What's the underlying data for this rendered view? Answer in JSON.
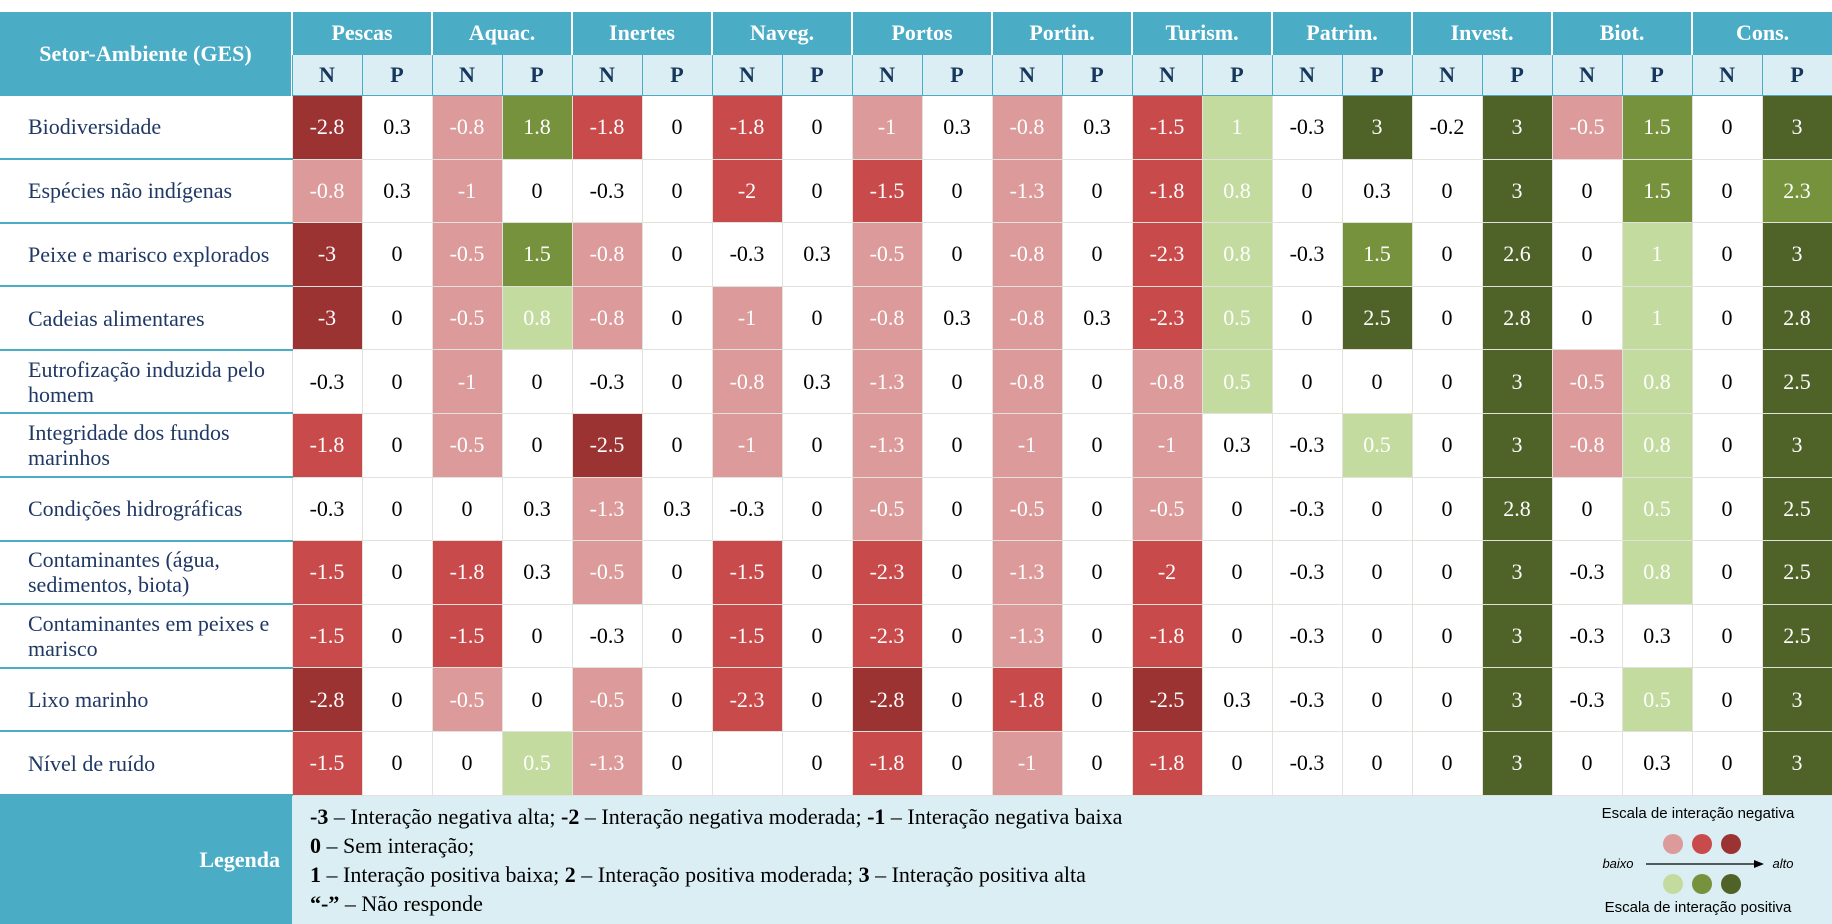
{
  "header": {
    "corner": "Setor-Ambiente (GES)",
    "sectors": [
      "Pescas",
      "Aquac.",
      "Inertes",
      "Naveg.",
      "Portos",
      "Portin.",
      "Turism.",
      "Patrim.",
      "Invest.",
      "Biot.",
      "Cons."
    ],
    "sub": [
      "N",
      "P"
    ]
  },
  "colors": {
    "negative": [
      "#dc9a9a",
      "#c84a4b",
      "#9b3333"
    ],
    "positive": [
      "#c4dba0",
      "#76923c",
      "#4f6228"
    ]
  },
  "rows": [
    {
      "label": "Biodiversidade",
      "cells": [
        -2.8,
        0.3,
        -0.8,
        1.8,
        -1.8,
        0,
        -1.8,
        0,
        -1,
        0.3,
        -0.8,
        0.3,
        -1.5,
        1,
        -0.3,
        3,
        -0.2,
        3,
        -0.5,
        1.5,
        0,
        3
      ]
    },
    {
      "label": "Espécies não indígenas",
      "cells": [
        -0.8,
        0.3,
        -1,
        0,
        -0.3,
        0,
        -2,
        0,
        -1.5,
        0,
        -1.3,
        0,
        -1.8,
        0.8,
        0,
        0.3,
        0,
        3,
        0,
        1.5,
        0,
        2.3
      ]
    },
    {
      "label": "Peixe e marisco explorados",
      "cells": [
        -3,
        0,
        -0.5,
        1.5,
        -0.8,
        0,
        -0.3,
        0.3,
        -0.5,
        0,
        -0.8,
        0,
        -2.3,
        0.8,
        -0.3,
        1.5,
        0,
        2.6,
        0,
        1,
        0,
        3
      ]
    },
    {
      "label": "Cadeias alimentares",
      "cells": [
        -3,
        0,
        -0.5,
        0.8,
        -0.8,
        0,
        -1,
        0,
        -0.8,
        0.3,
        -0.8,
        0.3,
        -2.3,
        0.5,
        0,
        2.5,
        0,
        2.8,
        0,
        1,
        0,
        2.8
      ]
    },
    {
      "label": "Eutrofização induzida pelo homem",
      "cells": [
        -0.3,
        0,
        -1,
        0,
        -0.3,
        0,
        -0.8,
        0.3,
        -1.3,
        0,
        -0.8,
        0,
        -0.8,
        0.5,
        0,
        0,
        0,
        3,
        -0.5,
        0.8,
        0,
        2.5
      ]
    },
    {
      "label": "Integridade dos fundos marinhos",
      "cells": [
        -1.8,
        0,
        -0.5,
        0,
        -2.5,
        0,
        -1,
        0,
        -1.3,
        0,
        -1,
        0,
        -1,
        0.3,
        -0.3,
        0.5,
        0,
        3,
        -0.8,
        0.8,
        0,
        3
      ]
    },
    {
      "label": "Condições hidrográficas",
      "cells": [
        -0.3,
        0,
        0,
        0.3,
        -1.3,
        0.3,
        -0.3,
        0,
        -0.5,
        0,
        -0.5,
        0,
        -0.5,
        0,
        -0.3,
        0,
        0,
        2.8,
        0,
        0.5,
        0,
        2.5
      ]
    },
    {
      "label": "Contaminantes (água, sedimentos, biota)",
      "cells": [
        -1.5,
        0,
        -1.8,
        0.3,
        -0.5,
        0,
        -1.5,
        0,
        -2.3,
        0,
        -1.3,
        0,
        -2,
        0,
        -0.3,
        0,
        0,
        3,
        -0.3,
        0.8,
        0,
        2.5
      ]
    },
    {
      "label": "Contaminantes em peixes e marisco",
      "cells": [
        -1.5,
        0,
        -1.5,
        0,
        -0.3,
        0,
        -1.5,
        0,
        -2.3,
        0,
        -1.3,
        0,
        -1.8,
        0,
        -0.3,
        0,
        0,
        3,
        -0.3,
        0.3,
        0,
        2.5
      ]
    },
    {
      "label": "Lixo marinho",
      "cells": [
        -2.8,
        0,
        -0.5,
        0,
        -0.5,
        0,
        -2.3,
        0,
        -2.8,
        0,
        -1.8,
        0,
        -2.5,
        0.3,
        -0.3,
        0,
        0,
        3,
        -0.3,
        0.5,
        0,
        3
      ]
    },
    {
      "label": "Nível de ruído",
      "cells": [
        -1.5,
        0,
        0,
        0.5,
        -1.3,
        0,
        null,
        0,
        -1.8,
        0,
        -1,
        0,
        -1.8,
        0,
        -0.3,
        0,
        0,
        3,
        0,
        0.3,
        0,
        3
      ]
    }
  ],
  "legend": {
    "title": "Legenda",
    "lines": [
      [
        {
          "term": "-3",
          "text": " – Interação negativa alta; "
        },
        {
          "term": "-2",
          "text": " – Interação negativa moderada; "
        },
        {
          "term": "-1",
          "text": " – Interação negativa baixa"
        }
      ],
      [
        {
          "term": "0",
          "text": " – Sem interação;"
        }
      ],
      [
        {
          "term": "1",
          "text": " – Interação positiva baixa; "
        },
        {
          "term": "2",
          "text": " – Interação positiva moderada; "
        },
        {
          "term": "3",
          "text": " – Interação positiva alta"
        }
      ],
      [
        {
          "term": "“-”",
          "text": " – Não responde"
        }
      ]
    ],
    "scale": {
      "negative": "Escala de interação negativa",
      "low": "baixo",
      "high": "alto",
      "positive": "Escala de interação positiva"
    }
  }
}
